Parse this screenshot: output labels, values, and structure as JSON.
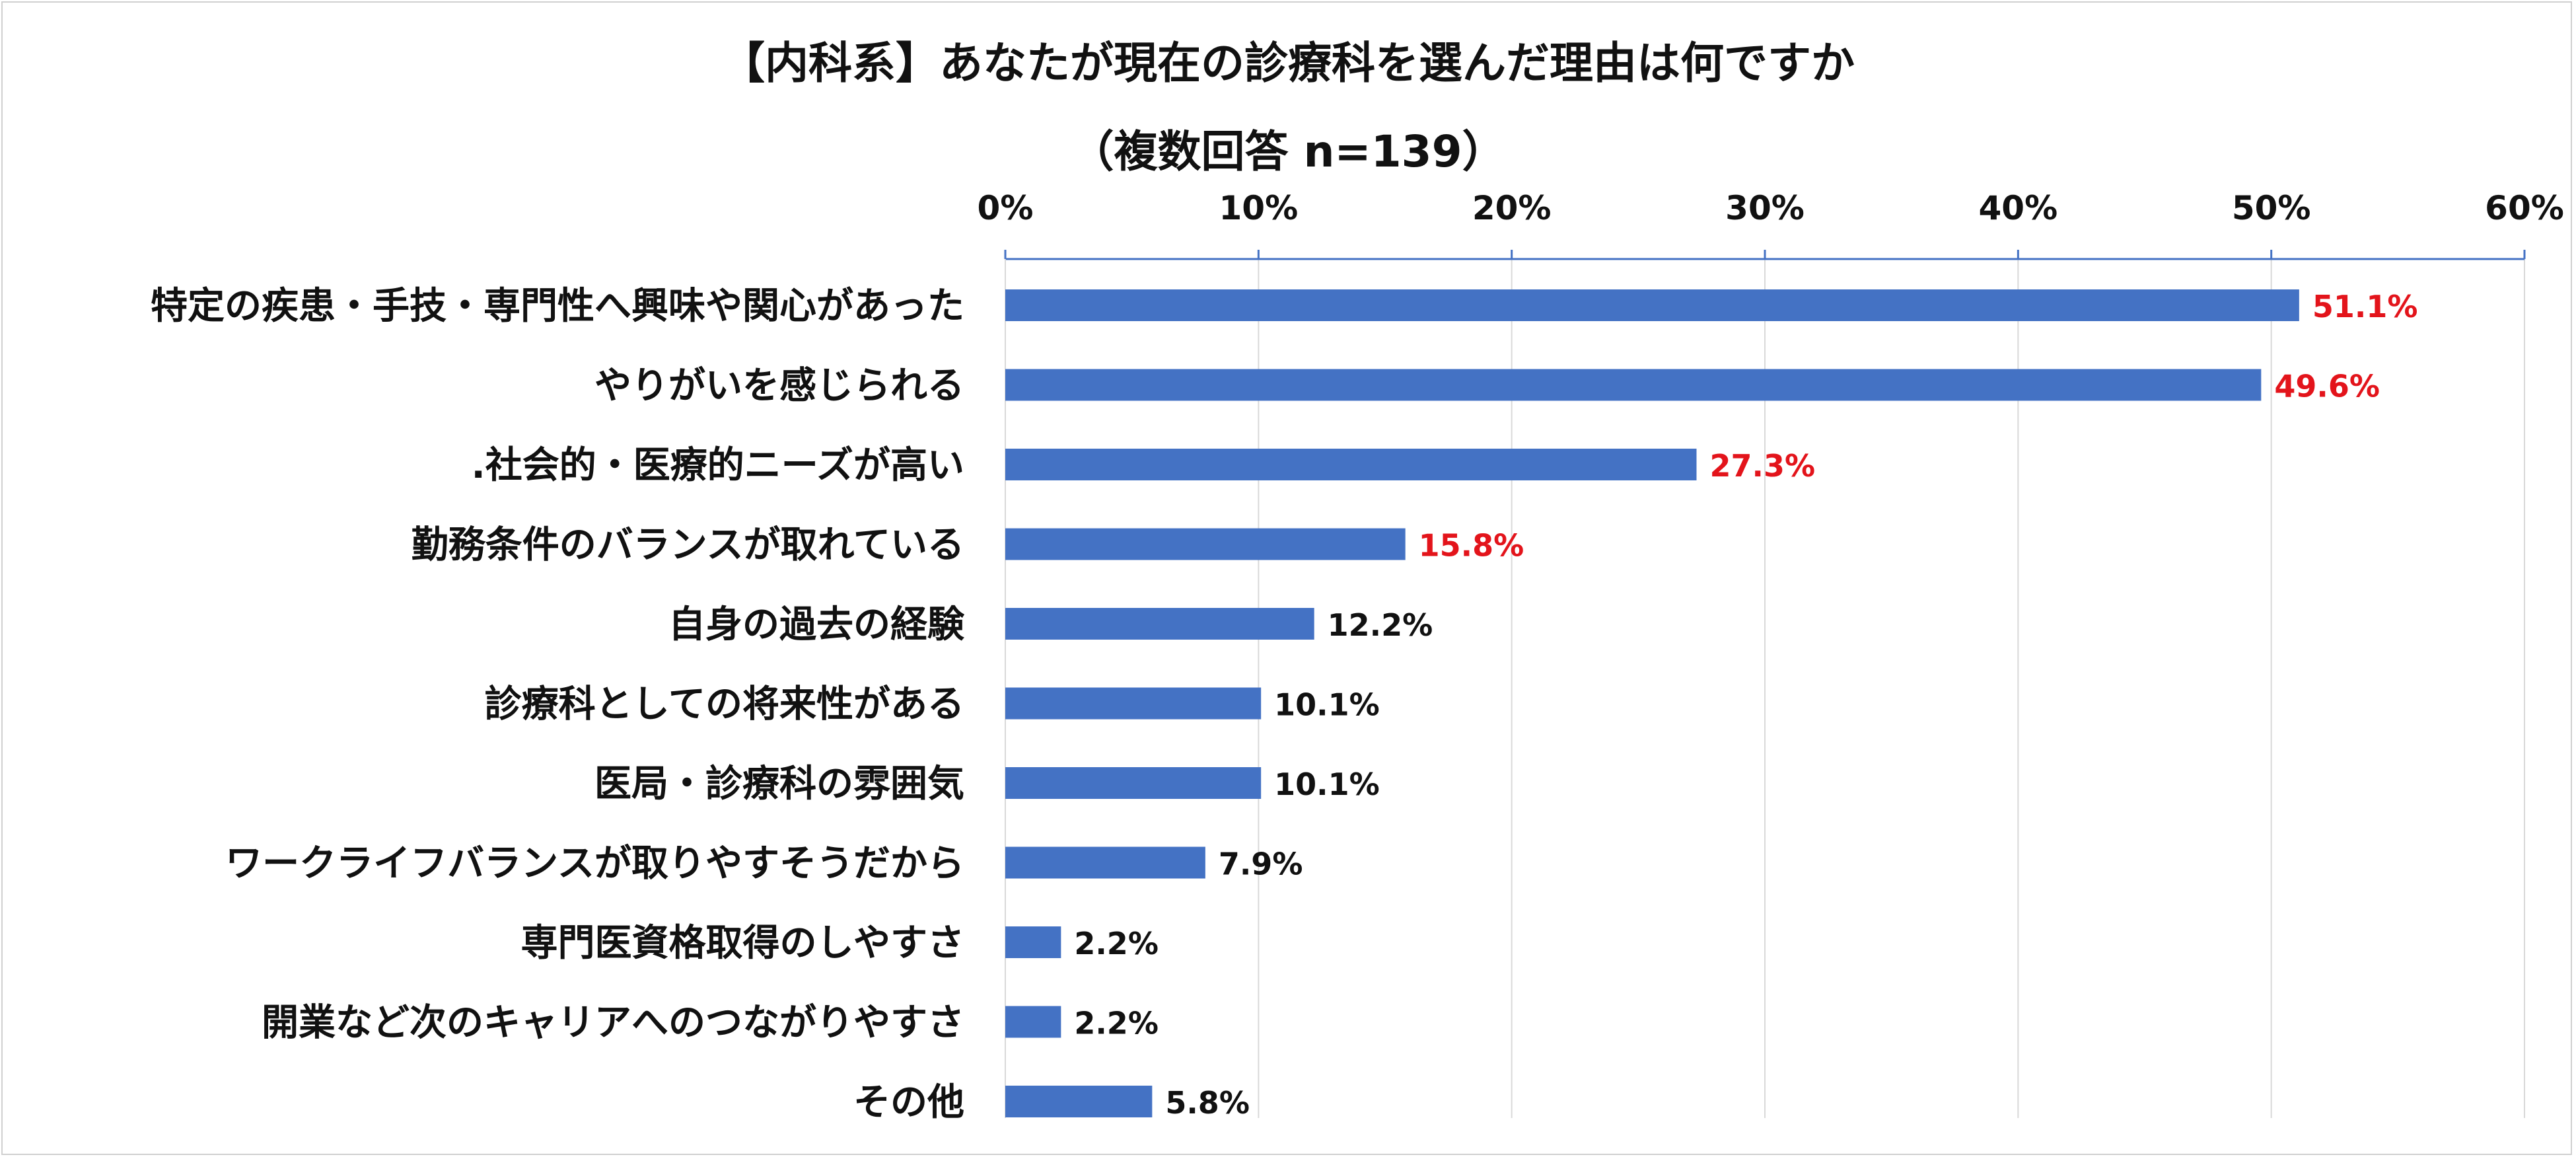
{
  "chart_data": {
    "type": "bar",
    "orientation": "horizontal",
    "title": "【内科系】あなたが現在の診療科を選んだ理由は何ですか",
    "subtitle": "（複数回答 n=139）",
    "xlim": [
      0,
      60
    ],
    "x_ticks": [
      "0%",
      "10%",
      "20%",
      "30%",
      "40%",
      "50%",
      "60%"
    ],
    "x_tick_values": [
      0,
      10,
      20,
      30,
      40,
      50,
      60
    ],
    "grid": true,
    "categories": [
      "特定の疾患・手技・専門性へ興味や関心があった",
      "やりがいを感じられる",
      ".社会的・医療的ニーズが高い",
      "勤務条件のバランスが取れている",
      "自身の過去の経験",
      "診療科としての将来性がある",
      "医局・診療科の雰囲気",
      "ワークライフバランスが取りやすそうだから",
      "専門医資格取得のしやすさ",
      "開業など次のキャリアへのつながりやすさ",
      "その他"
    ],
    "values": [
      51.1,
      49.6,
      27.3,
      15.8,
      12.2,
      10.1,
      10.1,
      7.9,
      2.2,
      2.2,
      5.8
    ],
    "value_labels": [
      "51.1%",
      "49.6%",
      "27.3%",
      "15.8%",
      "12.2%",
      "10.1%",
      "10.1%",
      "7.9%",
      "2.2%",
      "2.2%",
      "5.8%"
    ],
    "highlighted_top_n": 4,
    "colors": {
      "bar": "#4472C4",
      "axis": "#4472C4",
      "grid": "#D9D9D9",
      "label_highlight": "#E3141B",
      "label_normal": "#111111",
      "text": "#111111"
    }
  }
}
